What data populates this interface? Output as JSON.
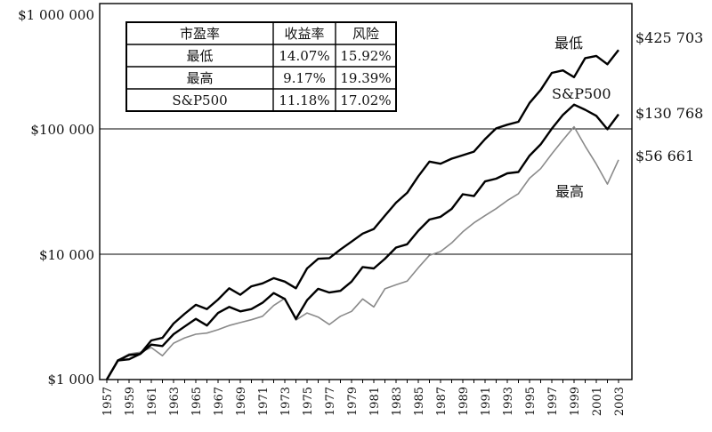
{
  "chart_data": {
    "type": "line",
    "y_scale": "log",
    "ylim": [
      1000,
      1000000
    ],
    "y_ticks": [
      1000,
      10000,
      100000,
      1000000
    ],
    "y_tick_labels": [
      "$1 000",
      "$10 000",
      "$100 000",
      "$1 000 000"
    ],
    "x_ticks": [
      "1957",
      "1959",
      "1961",
      "1963",
      "1965",
      "1967",
      "1969",
      "1971",
      "1973",
      "1975",
      "1977",
      "1979",
      "1981",
      "1983",
      "1985",
      "1987",
      "1989",
      "1991",
      "1993",
      "1995",
      "1997",
      "1999",
      "2001",
      "2003"
    ],
    "x": [
      1957,
      1958,
      1959,
      1960,
      1961,
      1962,
      1963,
      1964,
      1965,
      1966,
      1967,
      1968,
      1969,
      1970,
      1971,
      1972,
      1973,
      1974,
      1975,
      1976,
      1977,
      1978,
      1979,
      1980,
      1981,
      1982,
      1983,
      1984,
      1985,
      1986,
      1987,
      1988,
      1989,
      1990,
      1991,
      1992,
      1993,
      1994,
      1995,
      1996,
      1997,
      1998,
      1999,
      2000,
      2001,
      2002,
      2003
    ],
    "series": [
      {
        "name": "最低",
        "color": "#000000",
        "end_label": "$425 703",
        "values": [
          1000,
          1420,
          1570,
          1600,
          2050,
          2150,
          2800,
          3350,
          3950,
          3650,
          4350,
          5350,
          4750,
          5550,
          5850,
          6450,
          6050,
          5350,
          7700,
          9200,
          9300,
          10900,
          12600,
          14600,
          15900,
          20300,
          25800,
          30900,
          41900,
          54800,
          52700,
          57900,
          61700,
          65800,
          82900,
          101000,
          107900,
          114000,
          161100,
          204600,
          279700,
          293100,
          258500,
          367100,
          382400,
          328000,
          425703
        ]
      },
      {
        "name": "S&P500",
        "color": "#000000",
        "end_label": "$130 768",
        "values": [
          1000,
          1420,
          1450,
          1600,
          1900,
          1850,
          2300,
          2650,
          3050,
          2700,
          3400,
          3800,
          3500,
          3650,
          4100,
          4900,
          4400,
          3050,
          4300,
          5300,
          4950,
          5100,
          6050,
          7900,
          7700,
          9200,
          11300,
          12000,
          15400,
          18900,
          19900,
          23000,
          30100,
          29100,
          38100,
          40100,
          44200,
          45300,
          61200,
          75300,
          100400,
          129200,
          156200,
          142000,
          127100,
          99300,
          130768
        ]
      },
      {
        "name": "最高",
        "color": "#8a8a8a",
        "end_label": "$56 661",
        "values": [
          1000,
          1420,
          1600,
          1650,
          1800,
          1550,
          1950,
          2150,
          2300,
          2350,
          2500,
          2700,
          2850,
          3000,
          3200,
          3900,
          4450,
          2980,
          3400,
          3150,
          2750,
          3200,
          3500,
          4400,
          3800,
          5300,
          5700,
          6100,
          7800,
          9800,
          10500,
          12300,
          15100,
          17800,
          20300,
          23100,
          26800,
          30400,
          40400,
          48200,
          63200,
          81500,
          104000,
          72900,
          52400,
          36300,
          56661
        ]
      }
    ],
    "table": {
      "header": [
        "市盈率",
        "收益率",
        "风险"
      ],
      "rows": [
        [
          "最低",
          "14.07%",
          "15.92%"
        ],
        [
          "最高",
          "9.17%",
          "19.39%"
        ],
        [
          "S&P500",
          "11.18%",
          "17.02%"
        ]
      ]
    },
    "grid": "horizontal",
    "title": "",
    "xlabel": "",
    "ylabel": ""
  }
}
